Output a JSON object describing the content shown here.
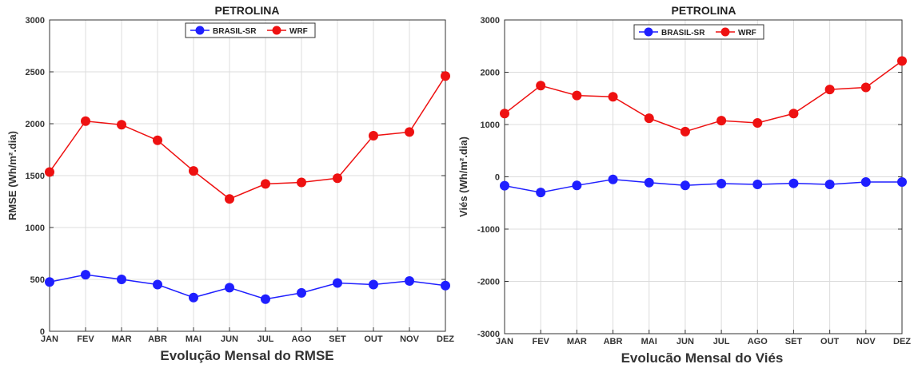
{
  "chart_data": [
    {
      "type": "line",
      "title": "PETROLINA",
      "xlabel": "Evolução Mensal do RMSE",
      "ylabel": "RMSE (Wh/m².dia)",
      "categories": [
        "JAN",
        "FEV",
        "MAR",
        "ABR",
        "MAI",
        "JUN",
        "JUL",
        "AGO",
        "SET",
        "OUT",
        "NOV",
        "DEZ"
      ],
      "ylim": [
        0,
        3000
      ],
      "yticks": [
        0,
        500,
        1000,
        1500,
        2000,
        2500,
        3000
      ],
      "grid": true,
      "legend_position": "top-center",
      "series": [
        {
          "name": "BRASIL-SR",
          "color": "#1f1fff",
          "values": [
            475,
            545,
            500,
            450,
            325,
            420,
            310,
            370,
            465,
            450,
            485,
            440
          ]
        },
        {
          "name": "WRF",
          "color": "#ee1111",
          "values": [
            1535,
            2025,
            1990,
            1840,
            1545,
            1275,
            1420,
            1435,
            1475,
            1885,
            1920,
            2460
          ]
        }
      ]
    },
    {
      "type": "line",
      "title": "PETROLINA",
      "xlabel": "Evolucão Mensal do Viés",
      "ylabel": "Viés (Wh/m².dia)",
      "categories": [
        "JAN",
        "FEV",
        "MAR",
        "ABR",
        "MAI",
        "JUN",
        "JUL",
        "AGO",
        "SET",
        "OUT",
        "NOV",
        "DEZ"
      ],
      "ylim": [
        -3000,
        3000
      ],
      "yticks": [
        -3000,
        -2000,
        -1000,
        0,
        1000,
        2000,
        3000
      ],
      "grid": true,
      "legend_position": "top-center",
      "series": [
        {
          "name": "BRASIL-SR",
          "color": "#1f1fff",
          "values": [
            -170,
            -300,
            -165,
            -50,
            -110,
            -165,
            -130,
            -145,
            -125,
            -145,
            -100,
            -100
          ]
        },
        {
          "name": "WRF",
          "color": "#ee1111",
          "values": [
            1210,
            1745,
            1555,
            1530,
            1120,
            865,
            1075,
            1030,
            1210,
            1670,
            1710,
            2215
          ]
        }
      ]
    }
  ]
}
